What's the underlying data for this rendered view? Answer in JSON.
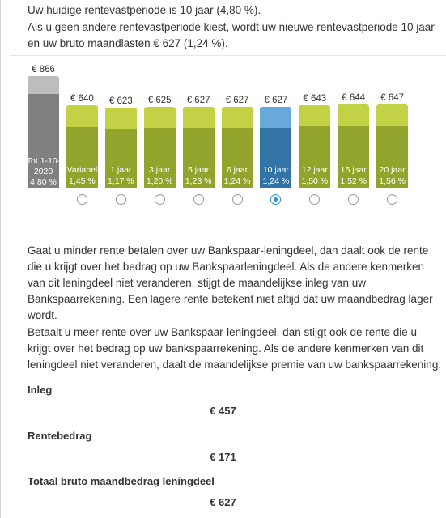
{
  "intro": {
    "line1": "Uw huidige rentevastperiode is 10 jaar (4,80 %).",
    "line2": "Als u geen andere rentevastperiode kiest, wordt uw nieuwe rentevastperiode 10 jaar en uw bruto maandlasten € 627 (1,24 %)."
  },
  "colors": {
    "current_top": "#bdbdbd",
    "current_bottom": "#808080",
    "option_top": "#c3d144",
    "option_bottom": "#93a42d",
    "selected_top": "#66a9da",
    "selected_bottom": "#3374a6",
    "radio_selected": "#2f8fd3"
  },
  "periods": [
    {
      "amount": "€ 866",
      "label": "Tot 1-10-2020",
      "rate": "4,80 %",
      "value": 866,
      "kind": "current",
      "has_radio": false,
      "selected": false
    },
    {
      "amount": "€ 640",
      "label": "Variabel",
      "rate": "1,45 %",
      "value": 640,
      "kind": "option",
      "has_radio": true,
      "selected": false
    },
    {
      "amount": "€ 623",
      "label": "1 jaar",
      "rate": "1,17 %",
      "value": 623,
      "kind": "option",
      "has_radio": true,
      "selected": false
    },
    {
      "amount": "€ 625",
      "label": "3 jaar",
      "rate": "1,20 %",
      "value": 625,
      "kind": "option",
      "has_radio": true,
      "selected": false
    },
    {
      "amount": "€ 627",
      "label": "5 jaar",
      "rate": "1,23 %",
      "value": 627,
      "kind": "option",
      "has_radio": true,
      "selected": false
    },
    {
      "amount": "€ 627",
      "label": "6 jaar",
      "rate": "1,24 %",
      "value": 627,
      "kind": "option",
      "has_radio": true,
      "selected": false
    },
    {
      "amount": "€ 627",
      "label": "10 jaar",
      "rate": "1,24 %",
      "value": 627,
      "kind": "selected",
      "has_radio": true,
      "selected": true
    },
    {
      "amount": "€ 643",
      "label": "12 jaar",
      "rate": "1,50 %",
      "value": 643,
      "kind": "option",
      "has_radio": true,
      "selected": false
    },
    {
      "amount": "€ 644",
      "label": "15 jaar",
      "rate": "1,52 %",
      "value": 644,
      "kind": "option",
      "has_radio": true,
      "selected": false
    },
    {
      "amount": "€ 647",
      "label": "20 jaar",
      "rate": "1,56 %",
      "value": 647,
      "kind": "option",
      "has_radio": true,
      "selected": false
    }
  ],
  "body": {
    "para1": "Gaat u minder rente betalen over uw Bankspaar-leningdeel, dan daalt ook de rente die u krijgt over het bedrag op uw Bankspaarleningdeel. Als de andere kenmerken van dit leningdeel niet veranderen, stijgt de maandelijkse inleg van uw Bankspaarrekening. Een lagere rente betekent niet altijd dat uw maandbedrag lager wordt.",
    "para2": "Betaalt u meer rente over uw Bankspaar-leningdeel, dan stijgt ook de rente die u krijgt over het bedrag op uw bankspaarrekening. Als de andere kenmerken van dit leningdeel niet veranderen, daalt de maandelijkse premie van uw bankspaarrekening."
  },
  "summary": {
    "inleg_label": "Inleg",
    "inleg_value": "€ 457",
    "rente_label": "Rentebedrag",
    "rente_value": "€ 171",
    "totaal_label": "Totaal bruto maandbedrag leningdeel",
    "totaal_value": "€ 627"
  }
}
